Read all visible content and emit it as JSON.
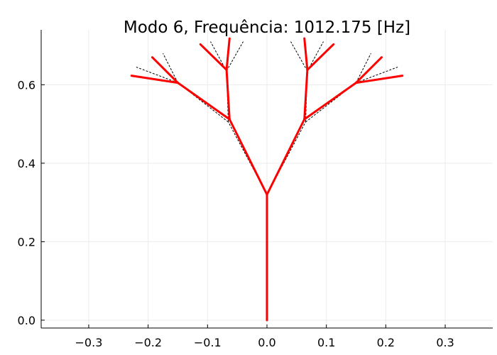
{
  "chart_data": {
    "type": "line",
    "title": "Modo 6, Frequência: 1012.175 [Hz]",
    "xlabel": "",
    "ylabel": "",
    "xlim": [
      -0.38,
      0.38
    ],
    "ylim": [
      -0.02,
      0.74
    ],
    "grid": true,
    "xticks": [
      -0.3,
      -0.2,
      -0.1,
      0.0,
      0.1,
      0.2,
      0.3
    ],
    "yticks": [
      0.0,
      0.2,
      0.4,
      0.6
    ],
    "xtick_labels": [
      "−0.3",
      "−0.2",
      "−0.1",
      "0.0",
      "0.1",
      "0.2",
      "0.3"
    ],
    "ytick_labels": [
      "0.0",
      "0.2",
      "0.4",
      "0.6"
    ],
    "series": [
      {
        "style": "dashed",
        "color": "#000000",
        "segments": [
          [
            [
              0.0,
              0.0
            ],
            [
              0.0,
              0.32
            ]
          ],
          [
            [
              0.0,
              0.32
            ],
            [
              -0.065,
              0.505
            ]
          ],
          [
            [
              0.0,
              0.32
            ],
            [
              0.065,
              0.505
            ]
          ],
          [
            [
              -0.065,
              0.505
            ],
            [
              -0.15,
              0.605
            ]
          ],
          [
            [
              -0.065,
              0.505
            ],
            [
              -0.068,
              0.635
            ]
          ],
          [
            [
              0.065,
              0.505
            ],
            [
              0.15,
              0.605
            ]
          ],
          [
            [
              0.065,
              0.505
            ],
            [
              0.068,
              0.635
            ]
          ],
          [
            [
              -0.15,
              0.605
            ],
            [
              -0.22,
              0.645
            ]
          ],
          [
            [
              -0.15,
              0.605
            ],
            [
              -0.175,
              0.68
            ]
          ],
          [
            [
              -0.068,
              0.635
            ],
            [
              -0.095,
              0.71
            ]
          ],
          [
            [
              -0.068,
              0.635
            ],
            [
              -0.04,
              0.71
            ]
          ],
          [
            [
              0.068,
              0.635
            ],
            [
              0.04,
              0.71
            ]
          ],
          [
            [
              0.068,
              0.635
            ],
            [
              0.095,
              0.71
            ]
          ],
          [
            [
              0.15,
              0.605
            ],
            [
              0.175,
              0.68
            ]
          ],
          [
            [
              0.15,
              0.605
            ],
            [
              0.22,
              0.645
            ]
          ]
        ]
      },
      {
        "style": "solid",
        "color": "#ff0000",
        "segments": [
          [
            [
              0.0,
              0.0
            ],
            [
              0.0,
              0.32
            ]
          ],
          [
            [
              0.0,
              0.32
            ],
            [
              -0.063,
              0.512
            ]
          ],
          [
            [
              0.0,
              0.32
            ],
            [
              0.063,
              0.512
            ]
          ],
          [
            [
              -0.063,
              0.512
            ],
            [
              -0.15,
              0.605
            ]
          ],
          [
            [
              -0.063,
              0.512
            ],
            [
              -0.068,
              0.638
            ]
          ],
          [
            [
              0.063,
              0.512
            ],
            [
              0.15,
              0.605
            ]
          ],
          [
            [
              0.063,
              0.512
            ],
            [
              0.068,
              0.638
            ]
          ],
          [
            [
              -0.15,
              0.605
            ],
            [
              -0.228,
              0.623
            ]
          ],
          [
            [
              -0.15,
              0.605
            ],
            [
              -0.193,
              0.67
            ]
          ],
          [
            [
              -0.068,
              0.638
            ],
            [
              -0.112,
              0.703
            ]
          ],
          [
            [
              -0.068,
              0.638
            ],
            [
              -0.063,
              0.718
            ]
          ],
          [
            [
              0.068,
              0.638
            ],
            [
              0.063,
              0.718
            ]
          ],
          [
            [
              0.068,
              0.638
            ],
            [
              0.112,
              0.703
            ]
          ],
          [
            [
              0.15,
              0.605
            ],
            [
              0.193,
              0.67
            ]
          ],
          [
            [
              0.15,
              0.605
            ],
            [
              0.228,
              0.623
            ]
          ]
        ]
      }
    ]
  }
}
